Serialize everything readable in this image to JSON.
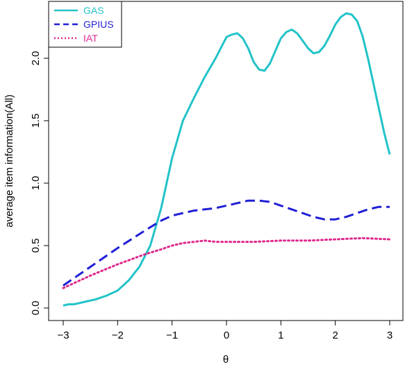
{
  "chart_data": {
    "type": "line",
    "title": "",
    "xlabel": "θ",
    "ylabel": "average item information(All)",
    "xlim": [
      -3,
      3
    ],
    "ylim": [
      0,
      2.35
    ],
    "x_ticks": [
      -3,
      -2,
      -1,
      0,
      1,
      2,
      3
    ],
    "y_ticks": [
      0.0,
      0.5,
      1.0,
      1.5,
      2.0
    ],
    "x_tick_labels": [
      "−3",
      "−2",
      "−1",
      "0",
      "1",
      "2",
      "3"
    ],
    "y_tick_labels": [
      "0.0",
      "0.5",
      "1.0",
      "1.5",
      "2.0"
    ],
    "grid": false,
    "legend_position": "top-left",
    "series": [
      {
        "name": "GAS",
        "color": "#22c3c8",
        "style": "solid",
        "x": [
          -3.0,
          -2.9,
          -2.8,
          -2.6,
          -2.4,
          -2.2,
          -2.0,
          -1.8,
          -1.6,
          -1.4,
          -1.2,
          -1.0,
          -0.8,
          -0.6,
          -0.4,
          -0.2,
          0.0,
          0.1,
          0.2,
          0.3,
          0.4,
          0.5,
          0.6,
          0.7,
          0.8,
          0.9,
          1.0,
          1.1,
          1.2,
          1.3,
          1.4,
          1.5,
          1.6,
          1.7,
          1.8,
          1.9,
          2.0,
          2.1,
          2.2,
          2.3,
          2.4,
          2.5,
          2.6,
          2.7,
          2.8,
          2.9,
          3.0
        ],
        "y": [
          0.02,
          0.03,
          0.03,
          0.05,
          0.07,
          0.1,
          0.14,
          0.22,
          0.33,
          0.5,
          0.8,
          1.2,
          1.5,
          1.68,
          1.85,
          2.0,
          2.17,
          2.19,
          2.2,
          2.16,
          2.08,
          1.97,
          1.91,
          1.9,
          1.96,
          2.06,
          2.16,
          2.21,
          2.23,
          2.2,
          2.14,
          2.08,
          2.04,
          2.05,
          2.1,
          2.18,
          2.27,
          2.33,
          2.36,
          2.35,
          2.3,
          2.18,
          2.0,
          1.8,
          1.6,
          1.4,
          1.23
        ]
      },
      {
        "name": "GPIUS",
        "color": "#1f1fd6",
        "style": "dashed",
        "x": [
          -3.0,
          -2.5,
          -2.0,
          -1.5,
          -1.2,
          -1.0,
          -0.8,
          -0.6,
          -0.4,
          -0.2,
          0.0,
          0.2,
          0.4,
          0.6,
          0.8,
          1.0,
          1.2,
          1.4,
          1.6,
          1.8,
          2.0,
          2.2,
          2.4,
          2.6,
          2.8,
          3.0
        ],
        "y": [
          0.18,
          0.33,
          0.48,
          0.62,
          0.7,
          0.74,
          0.76,
          0.78,
          0.79,
          0.8,
          0.82,
          0.84,
          0.86,
          0.86,
          0.85,
          0.82,
          0.79,
          0.76,
          0.73,
          0.71,
          0.71,
          0.73,
          0.76,
          0.79,
          0.81,
          0.81
        ]
      },
      {
        "name": "IAT",
        "color": "#e0288c",
        "style": "dotted",
        "x": [
          -3.0,
          -2.5,
          -2.0,
          -1.5,
          -1.2,
          -1.0,
          -0.8,
          -0.6,
          -0.4,
          -0.2,
          0.0,
          0.5,
          1.0,
          1.5,
          2.0,
          2.5,
          3.0
        ],
        "y": [
          0.16,
          0.26,
          0.35,
          0.43,
          0.47,
          0.5,
          0.52,
          0.53,
          0.54,
          0.53,
          0.53,
          0.53,
          0.54,
          0.54,
          0.55,
          0.56,
          0.55
        ]
      }
    ]
  }
}
